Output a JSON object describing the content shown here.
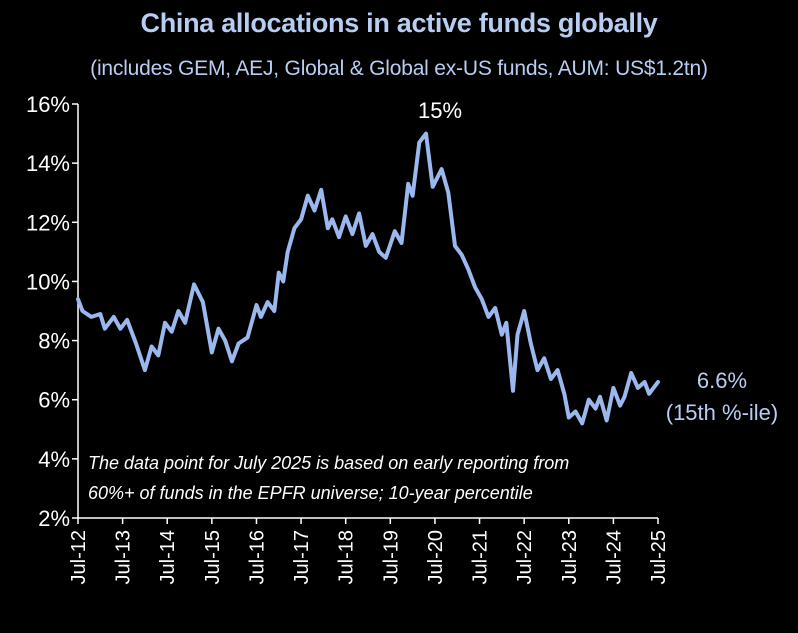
{
  "chart_data": {
    "type": "line",
    "title": "China allocations in active funds globally",
    "subtitle": "(includes GEM, AEJ, Global & Global ex-US funds, AUM: US$1.2tn)",
    "y_ticks": [
      "16%",
      "14%",
      "12%",
      "10%",
      "8%",
      "6%",
      "4%",
      "2%"
    ],
    "ylim": [
      2,
      16
    ],
    "x_ticks": [
      "Jul-12",
      "Jul-13",
      "Jul-14",
      "Jul-15",
      "Jul-16",
      "Jul-17",
      "Jul-18",
      "Jul-19",
      "Jul-20",
      "Jul-21",
      "Jul-22",
      "Jul-23",
      "Jul-24",
      "Jul-25"
    ],
    "x_range": [
      2012.5,
      2025.5
    ],
    "grid": false,
    "series": [
      {
        "color": "#9ab8ee",
        "x": [
          2012.5,
          2012.6,
          2012.8,
          2013.0,
          2013.1,
          2013.3,
          2013.45,
          2013.6,
          2013.8,
          2014.0,
          2014.15,
          2014.3,
          2014.45,
          2014.6,
          2014.75,
          2014.9,
          2015.1,
          2015.3,
          2015.5,
          2015.65,
          2015.8,
          2015.95,
          2016.1,
          2016.3,
          2016.5,
          2016.6,
          2016.75,
          2016.9,
          2017.0,
          2017.1,
          2017.2,
          2017.35,
          2017.5,
          2017.65,
          2017.8,
          2017.95,
          2018.1,
          2018.2,
          2018.35,
          2018.5,
          2018.65,
          2018.8,
          2018.95,
          2019.1,
          2019.25,
          2019.4,
          2019.6,
          2019.75,
          2019.9,
          2020.0,
          2020.15,
          2020.3,
          2020.45,
          2020.55,
          2020.65,
          2020.8,
          2020.95,
          2021.1,
          2021.25,
          2021.4,
          2021.55,
          2021.7,
          2021.85,
          2022.0,
          2022.1,
          2022.25,
          2022.35,
          2022.5,
          2022.65,
          2022.8,
          2022.95,
          2023.1,
          2023.25,
          2023.4,
          2023.5,
          2023.65,
          2023.8,
          2023.95,
          2024.1,
          2024.2,
          2024.35,
          2024.5,
          2024.65,
          2024.75,
          2024.9,
          2025.05,
          2025.2,
          2025.3,
          2025.4,
          2025.5
        ],
        "values": [
          9.4,
          9.0,
          8.8,
          8.9,
          8.4,
          8.8,
          8.4,
          8.7,
          7.9,
          7.0,
          7.8,
          7.5,
          8.6,
          8.3,
          9.0,
          8.6,
          9.9,
          9.3,
          7.6,
          8.4,
          8.0,
          7.3,
          7.9,
          8.1,
          9.2,
          8.8,
          9.3,
          9.0,
          10.3,
          10.0,
          11.0,
          11.8,
          12.1,
          12.9,
          12.4,
          13.1,
          11.8,
          12.1,
          11.5,
          12.2,
          11.6,
          12.3,
          11.2,
          11.6,
          11.0,
          10.8,
          11.7,
          11.3,
          13.3,
          12.9,
          14.7,
          15.0,
          13.2,
          13.5,
          13.8,
          13.0,
          11.2,
          10.9,
          10.4,
          9.8,
          9.4,
          8.8,
          9.1,
          8.2,
          8.6,
          6.3,
          8.2,
          9.0,
          7.9,
          7.0,
          7.4,
          6.7,
          7.0,
          6.2,
          5.4,
          5.6,
          5.2,
          6.0,
          5.7,
          6.1,
          5.3,
          6.4,
          5.8,
          6.1,
          6.9,
          6.4,
          6.6,
          6.2,
          6.4,
          6.6
        ]
      }
    ],
    "annotations": {
      "peak_label": "15%",
      "last_value": "6.6%",
      "last_percentile": "(15th %-ile)",
      "note_line1": "The data point for July 2025 is based on early reporting from",
      "note_line2": "60%+ of funds in the EPFR universe; 10-year percentile"
    }
  }
}
